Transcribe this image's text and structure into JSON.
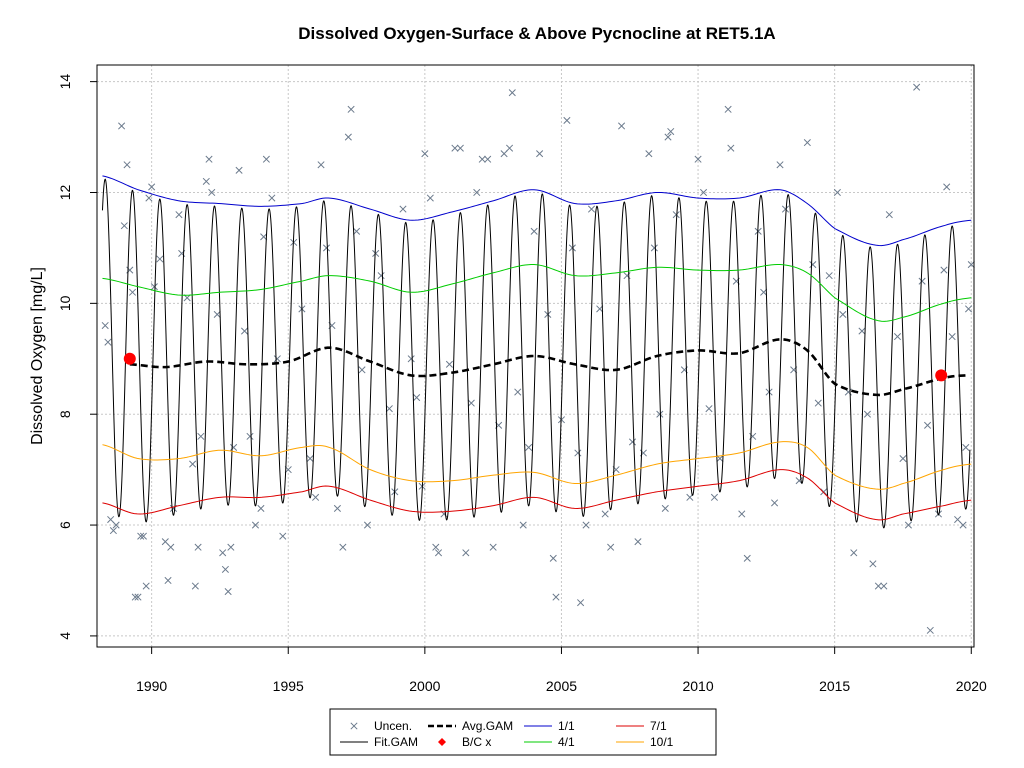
{
  "chart_data": {
    "type": "line",
    "title": "Dissolved Oxygen-Surface & Above Pycnocline at RET5.1A",
    "xlabel": "",
    "ylabel": "Dissolved Oxygen [mg/L]",
    "xlim": [
      1988.0,
      2020.1
    ],
    "ylim": [
      3.8,
      14.3
    ],
    "xticks": [
      1990,
      1995,
      2000,
      2005,
      2010,
      2015,
      2020
    ],
    "yticks": [
      4,
      6,
      8,
      10,
      12,
      14
    ],
    "grid": true,
    "legend_position": "bottom",
    "legend": [
      {
        "label": "Uncen.",
        "symbol": "x",
        "color": "#6b7a8c"
      },
      {
        "label": "Fit.GAM",
        "symbol": "line",
        "color": "#000000"
      },
      {
        "label": "Avg.GAM",
        "symbol": "dash",
        "color": "#000000"
      },
      {
        "label": "B/C x",
        "symbol": "diamond",
        "color": "#ff0000"
      },
      {
        "label": "1/1",
        "symbol": "line",
        "color": "#0000cc"
      },
      {
        "label": "4/1",
        "symbol": "line",
        "color": "#00cc00"
      },
      {
        "label": "7/1",
        "symbol": "line",
        "color": "#dd0000"
      },
      {
        "label": "10/1",
        "symbol": "line",
        "color": "#ffa500"
      }
    ],
    "series": [
      {
        "name": "1/1",
        "color": "#0000cc",
        "style": "solid",
        "x": [
          1988.2,
          1989.5,
          1991,
          1992.5,
          1994,
          1995.5,
          1996.5,
          1998,
          1999.5,
          2001,
          2002.5,
          2004,
          2005.5,
          2007,
          2008.5,
          2010,
          2011.5,
          2013,
          2014,
          2015,
          2016.5,
          2017.5,
          2019,
          2020
        ],
        "y": [
          12.3,
          12.05,
          11.85,
          11.8,
          11.75,
          11.8,
          11.9,
          11.7,
          11.5,
          11.65,
          11.85,
          12.05,
          11.8,
          11.85,
          12.0,
          11.9,
          11.9,
          12.05,
          11.8,
          11.35,
          11.05,
          11.15,
          11.4,
          11.5
        ]
      },
      {
        "name": "4/1",
        "color": "#00cc00",
        "style": "solid",
        "x": [
          1988.2,
          1989.5,
          1991,
          1992.5,
          1994,
          1995.5,
          1996.5,
          1998,
          1999.5,
          2001,
          2002.5,
          2004,
          2005.5,
          2007,
          2008.5,
          2010,
          2011.5,
          2013,
          2014,
          2015,
          2016.5,
          2017.5,
          2019,
          2020
        ],
        "y": [
          10.45,
          10.3,
          10.15,
          10.2,
          10.25,
          10.4,
          10.5,
          10.4,
          10.2,
          10.35,
          10.55,
          10.7,
          10.5,
          10.55,
          10.65,
          10.6,
          10.6,
          10.7,
          10.55,
          10.1,
          9.7,
          9.75,
          10.0,
          10.1
        ]
      },
      {
        "name": "Avg.GAM",
        "color": "#000000",
        "style": "dashed",
        "x": [
          1989.2,
          1990.5,
          1992,
          1993.5,
          1995,
          1996.5,
          1998,
          1999.5,
          2001,
          2002.5,
          2004,
          2005.5,
          2007,
          2008.5,
          2010,
          2011.5,
          2013,
          2014,
          2015,
          2016.5,
          2017.5,
          2019,
          2019.8
        ],
        "y": [
          8.9,
          8.85,
          8.95,
          8.9,
          8.95,
          9.2,
          8.95,
          8.7,
          8.75,
          8.9,
          9.05,
          8.9,
          8.8,
          9.05,
          9.15,
          9.1,
          9.35,
          9.15,
          8.55,
          8.35,
          8.45,
          8.65,
          8.7
        ]
      },
      {
        "name": "10/1",
        "color": "#ffa500",
        "style": "solid",
        "x": [
          1988.2,
          1989.5,
          1991,
          1992.5,
          1994,
          1995.5,
          1996.5,
          1998,
          1999.5,
          2001,
          2002.5,
          2004,
          2005.5,
          2007,
          2008.5,
          2010,
          2011.5,
          2013,
          2014,
          2015,
          2016.5,
          2017.5,
          2019,
          2020
        ],
        "y": [
          7.45,
          7.2,
          7.2,
          7.35,
          7.25,
          7.4,
          7.4,
          7.0,
          6.8,
          6.8,
          6.9,
          6.95,
          6.75,
          6.9,
          7.1,
          7.2,
          7.3,
          7.5,
          7.4,
          6.9,
          6.65,
          6.75,
          7.0,
          7.1
        ]
      },
      {
        "name": "7/1",
        "color": "#dd0000",
        "style": "solid",
        "x": [
          1988.2,
          1989.5,
          1991,
          1992.5,
          1994,
          1995.5,
          1996.5,
          1998,
          1999.5,
          2001,
          2002.5,
          2004,
          2005.5,
          2007,
          2008.5,
          2010,
          2011.5,
          2013,
          2014,
          2015,
          2016.5,
          2017.5,
          2019,
          2020
        ],
        "y": [
          6.4,
          6.2,
          6.35,
          6.5,
          6.5,
          6.6,
          6.7,
          6.45,
          6.25,
          6.25,
          6.35,
          6.5,
          6.3,
          6.45,
          6.6,
          6.7,
          6.8,
          7.0,
          6.85,
          6.4,
          6.1,
          6.2,
          6.35,
          6.45
        ]
      }
    ],
    "fit_gam": {
      "name": "Fit.GAM",
      "color": "#000000",
      "x_start": 1988.2,
      "x_end": 2019.95,
      "period_years": 1.0,
      "peak_phase": 0.1,
      "upper_series": "1/1",
      "lower_series": "7/1"
    },
    "bc_points": [
      {
        "x": 1989.2,
        "y": 9.0
      },
      {
        "x": 2018.9,
        "y": 8.7
      }
    ],
    "uncensored_points": [
      [
        1988.3,
        9.6
      ],
      [
        1988.4,
        9.3
      ],
      [
        1988.5,
        6.1
      ],
      [
        1988.6,
        5.9
      ],
      [
        1988.7,
        6.0
      ],
      [
        1988.9,
        13.2
      ],
      [
        1989.0,
        11.4
      ],
      [
        1989.1,
        12.5
      ],
      [
        1989.2,
        10.6
      ],
      [
        1989.3,
        10.2
      ],
      [
        1989.4,
        4.7
      ],
      [
        1989.5,
        4.7
      ],
      [
        1989.6,
        5.8
      ],
      [
        1989.7,
        5.8
      ],
      [
        1989.8,
        4.9
      ],
      [
        1989.9,
        11.9
      ],
      [
        1990.0,
        12.1
      ],
      [
        1990.1,
        10.3
      ],
      [
        1990.3,
        10.8
      ],
      [
        1990.5,
        5.7
      ],
      [
        1990.6,
        5.0
      ],
      [
        1990.7,
        5.6
      ],
      [
        1990.8,
        6.3
      ],
      [
        1991.0,
        11.6
      ],
      [
        1991.1,
        10.9
      ],
      [
        1991.3,
        10.1
      ],
      [
        1991.5,
        7.1
      ],
      [
        1991.6,
        4.9
      ],
      [
        1991.7,
        5.6
      ],
      [
        1991.8,
        7.6
      ],
      [
        1992.0,
        12.2
      ],
      [
        1992.1,
        12.6
      ],
      [
        1992.2,
        12.0
      ],
      [
        1992.4,
        9.8
      ],
      [
        1992.6,
        5.5
      ],
      [
        1992.7,
        5.2
      ],
      [
        1992.8,
        4.8
      ],
      [
        1992.9,
        5.6
      ],
      [
        1993.0,
        7.4
      ],
      [
        1993.2,
        12.4
      ],
      [
        1993.4,
        9.5
      ],
      [
        1993.6,
        7.6
      ],
      [
        1993.8,
        6.0
      ],
      [
        1994.0,
        6.3
      ],
      [
        1994.1,
        11.2
      ],
      [
        1994.2,
        12.6
      ],
      [
        1994.4,
        11.9
      ],
      [
        1994.6,
        9.0
      ],
      [
        1994.8,
        5.8
      ],
      [
        1995.0,
        7.0
      ],
      [
        1995.2,
        11.1
      ],
      [
        1995.5,
        9.9
      ],
      [
        1995.8,
        7.2
      ],
      [
        1996.0,
        6.5
      ],
      [
        1996.2,
        12.5
      ],
      [
        1996.4,
        11.0
      ],
      [
        1996.6,
        9.6
      ],
      [
        1996.8,
        6.3
      ],
      [
        1997.0,
        5.6
      ],
      [
        1997.2,
        13.0
      ],
      [
        1997.3,
        13.5
      ],
      [
        1997.5,
        11.3
      ],
      [
        1997.7,
        8.8
      ],
      [
        1997.9,
        6.0
      ],
      [
        1998.2,
        10.9
      ],
      [
        1998.4,
        10.5
      ],
      [
        1998.7,
        8.1
      ],
      [
        1998.9,
        6.6
      ],
      [
        1999.2,
        11.7
      ],
      [
        1999.5,
        9.0
      ],
      [
        1999.7,
        8.3
      ],
      [
        1999.9,
        6.7
      ],
      [
        2000.0,
        12.7
      ],
      [
        2000.2,
        11.9
      ],
      [
        2000.4,
        5.6
      ],
      [
        2000.5,
        5.5
      ],
      [
        2000.7,
        6.2
      ],
      [
        2000.9,
        8.9
      ],
      [
        2001.1,
        12.8
      ],
      [
        2001.3,
        12.8
      ],
      [
        2001.5,
        5.5
      ],
      [
        2001.7,
        8.2
      ],
      [
        2001.9,
        12.0
      ],
      [
        2002.1,
        12.6
      ],
      [
        2002.3,
        12.6
      ],
      [
        2002.5,
        5.6
      ],
      [
        2002.7,
        7.8
      ],
      [
        2002.9,
        12.7
      ],
      [
        2003.1,
        12.8
      ],
      [
        2003.2,
        13.8
      ],
      [
        2003.4,
        8.4
      ],
      [
        2003.6,
        6.0
      ],
      [
        2003.8,
        7.4
      ],
      [
        2004.0,
        11.3
      ],
      [
        2004.2,
        12.7
      ],
      [
        2004.5,
        9.8
      ],
      [
        2004.7,
        5.4
      ],
      [
        2004.8,
        4.7
      ],
      [
        2005.0,
        7.9
      ],
      [
        2005.2,
        13.3
      ],
      [
        2005.4,
        11.0
      ],
      [
        2005.6,
        7.3
      ],
      [
        2005.7,
        4.6
      ],
      [
        2005.9,
        6.0
      ],
      [
        2006.1,
        11.7
      ],
      [
        2006.4,
        9.9
      ],
      [
        2006.6,
        6.2
      ],
      [
        2006.8,
        5.6
      ],
      [
        2007.0,
        7.0
      ],
      [
        2007.2,
        13.2
      ],
      [
        2007.4,
        10.5
      ],
      [
        2007.6,
        7.5
      ],
      [
        2007.8,
        5.7
      ],
      [
        2008.0,
        7.3
      ],
      [
        2008.2,
        12.7
      ],
      [
        2008.4,
        11.0
      ],
      [
        2008.6,
        8.0
      ],
      [
        2008.8,
        6.3
      ],
      [
        2008.9,
        13.0
      ],
      [
        2009.0,
        13.1
      ],
      [
        2009.2,
        11.6
      ],
      [
        2009.5,
        8.8
      ],
      [
        2009.7,
        6.5
      ],
      [
        2010.0,
        12.6
      ],
      [
        2010.2,
        12.0
      ],
      [
        2010.4,
        8.1
      ],
      [
        2010.6,
        6.5
      ],
      [
        2010.8,
        7.2
      ],
      [
        2011.1,
        13.5
      ],
      [
        2011.2,
        12.8
      ],
      [
        2011.4,
        10.4
      ],
      [
        2011.6,
        6.2
      ],
      [
        2011.8,
        5.4
      ],
      [
        2012.0,
        7.6
      ],
      [
        2012.2,
        11.3
      ],
      [
        2012.4,
        10.2
      ],
      [
        2012.6,
        8.4
      ],
      [
        2012.8,
        6.4
      ],
      [
        2013.0,
        12.5
      ],
      [
        2013.2,
        11.7
      ],
      [
        2013.5,
        8.8
      ],
      [
        2013.7,
        6.8
      ],
      [
        2014.0,
        12.9
      ],
      [
        2014.2,
        10.7
      ],
      [
        2014.4,
        8.2
      ],
      [
        2014.6,
        6.6
      ],
      [
        2014.8,
        10.5
      ],
      [
        2015.1,
        12.0
      ],
      [
        2015.3,
        9.8
      ],
      [
        2015.5,
        8.4
      ],
      [
        2015.7,
        5.5
      ],
      [
        2016.0,
        9.5
      ],
      [
        2016.2,
        8.0
      ],
      [
        2016.4,
        5.3
      ],
      [
        2016.6,
        4.9
      ],
      [
        2016.8,
        4.9
      ],
      [
        2017.0,
        11.6
      ],
      [
        2017.3,
        9.4
      ],
      [
        2017.5,
        7.2
      ],
      [
        2017.7,
        6.0
      ],
      [
        2018.0,
        13.9
      ],
      [
        2018.2,
        10.4
      ],
      [
        2018.4,
        7.8
      ],
      [
        2018.5,
        4.1
      ],
      [
        2018.8,
        6.2
      ],
      [
        2019.0,
        10.6
      ],
      [
        2019.1,
        12.1
      ],
      [
        2019.3,
        9.4
      ],
      [
        2019.5,
        6.1
      ],
      [
        2019.7,
        6.0
      ],
      [
        2019.8,
        7.4
      ],
      [
        2020.0,
        10.7
      ],
      [
        2019.9,
        9.9
      ]
    ]
  }
}
